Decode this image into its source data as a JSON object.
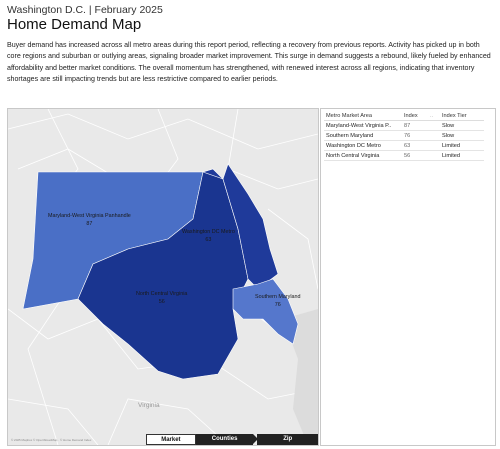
{
  "header": {
    "subtitle": "Washington D.C. | February 2025",
    "title": "Home Demand Map",
    "description": "Buyer demand has increased across all metro areas during this report period, reflecting a recovery from previous reports. Activity has picked up in both core regions and suburban or outlying areas, signaling broader market improvement. This surge in demand suggests a rebound, likely fueled by enhanced affordability and better market conditions. The overall momentum has strengthened, with renewed interest across all regions, indicating that inventory shortages are still impacting trends but are less restrictive compared to earlier periods."
  },
  "map": {
    "regions": [
      {
        "name": "Maryland-West Virginia Panhandle",
        "index": "87",
        "color": "#4a6fc6"
      },
      {
        "name": "Washington DC Metro",
        "index": "63",
        "color": "#1f3a9a"
      },
      {
        "name": "North Central Virginia",
        "index": "56",
        "color": "#1a3590"
      },
      {
        "name": "Southern Maryland",
        "index": "76",
        "color": "#5577cc"
      }
    ],
    "place_label": "Virginia",
    "attribution": "© 2025 Mapbox © OpenStreetMap · © Home Demand Index",
    "tabs": [
      {
        "label": "Market Areas",
        "active": true
      },
      {
        "label": "Counties",
        "active": false
      },
      {
        "label": "Zip Codes",
        "active": false
      }
    ]
  },
  "table": {
    "headers": {
      "area": "Metro Market Area",
      "index": "Index",
      "dots": "..",
      "tier": "Index Tier"
    },
    "rows": [
      {
        "area": "Maryland-West Virginia P..",
        "index": "87",
        "tier": "Slow"
      },
      {
        "area": "Southern Maryland",
        "index": "76",
        "tier": "Slow"
      },
      {
        "area": "Washington DC Metro",
        "index": "63",
        "tier": "Limited"
      },
      {
        "area": "North Central Virginia",
        "index": "56",
        "tier": "Limited"
      }
    ]
  }
}
